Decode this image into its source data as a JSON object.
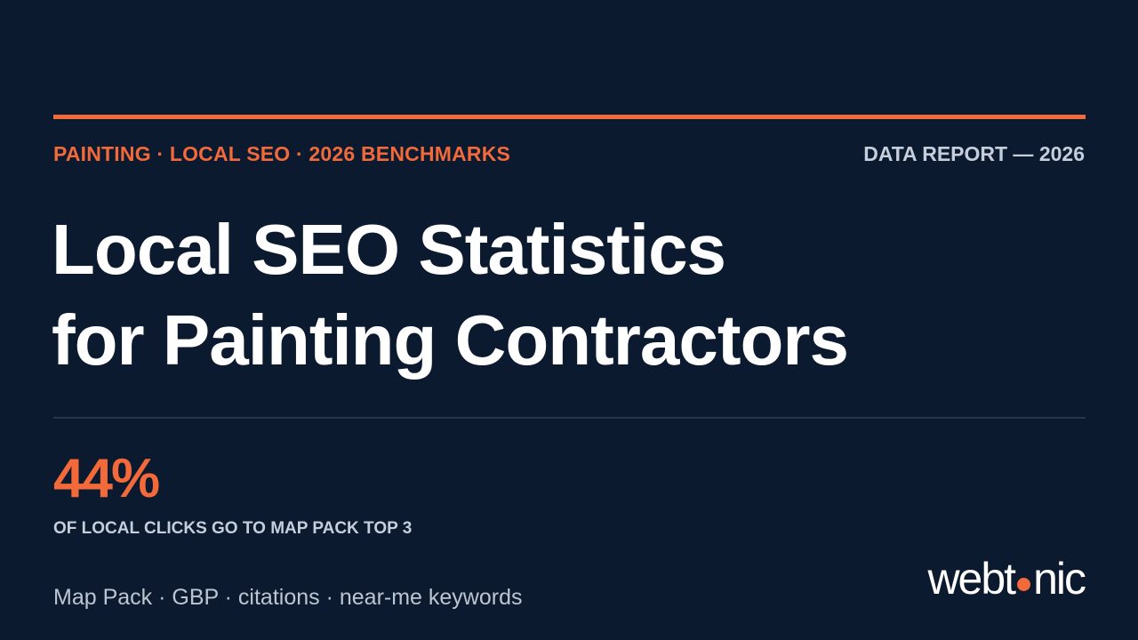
{
  "header": {
    "eyebrow": "PAINTING · LOCAL SEO · 2026 BENCHMARKS",
    "report_label": "DATA REPORT — 2026"
  },
  "title": {
    "line1": "Local SEO Statistics",
    "line2": "for Painting Contractors"
  },
  "stat": {
    "value": "44%",
    "caption": "OF LOCAL CLICKS GO TO MAP PACK TOP 3"
  },
  "footer": {
    "topics": "Map Pack · GBP · citations · near-me keywords"
  },
  "logo": {
    "before_dot": "webt",
    "after_dot": "nic"
  }
}
